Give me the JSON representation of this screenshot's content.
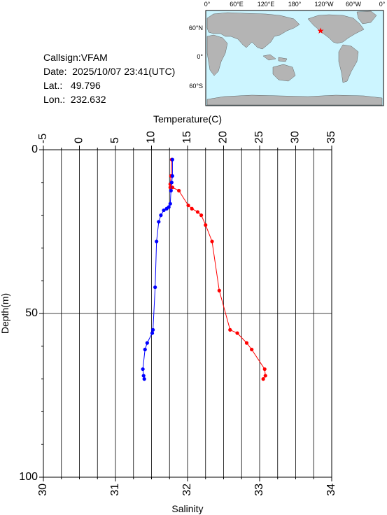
{
  "station": {
    "callsign_label": "Callsign:",
    "callsign": "VFAM",
    "date_label": "Date:",
    "date": "2025/10/07 23:41(UTC)",
    "lat_label": "Lat.:",
    "lat": "49.796",
    "lon_label": "Lon.:",
    "lon": "232.632"
  },
  "map": {
    "lon_labels": [
      "0°",
      "60°E",
      "120°E",
      "180°",
      "120°W",
      "60°W",
      "0°"
    ],
    "lat_labels": [
      "60°N",
      "0°",
      "60°S"
    ],
    "ocean_color": "#ccf5ff",
    "land_color": "#b4b4b4",
    "marker": "red-star"
  },
  "chart_data": {
    "type": "line",
    "top_axis_label": "Temperature(C)",
    "bottom_axis_label": "Salinity",
    "y_axis_label": "Depth(m)",
    "temperature_ticks": [
      "-5",
      "0",
      "5",
      "10",
      "15",
      "20",
      "25",
      "30",
      "35"
    ],
    "salinity_ticks": [
      "30",
      "31",
      "32",
      "33",
      "34"
    ],
    "depth_ticks": [
      "0",
      "50",
      "100"
    ],
    "xlim_temperature": [
      -5,
      35
    ],
    "xlim_salinity": [
      30,
      34
    ],
    "ylim_depth": [
      0,
      100
    ],
    "grid": true,
    "series": [
      {
        "quantity": "temperature",
        "color": "#ff0000",
        "points": [
          [
            12.8,
            3
          ],
          [
            12.7,
            8
          ],
          [
            12.6,
            10.5
          ],
          [
            12.6,
            11.5
          ],
          [
            12.9,
            11.5
          ],
          [
            13.8,
            12.5
          ],
          [
            15.1,
            17
          ],
          [
            15.6,
            18
          ],
          [
            16.4,
            19
          ],
          [
            16.9,
            20
          ],
          [
            17.5,
            23
          ],
          [
            18.4,
            28
          ],
          [
            19.4,
            43
          ],
          [
            20.9,
            55
          ],
          [
            21.9,
            56
          ],
          [
            23.2,
            59
          ],
          [
            23.9,
            61
          ],
          [
            25.7,
            67
          ],
          [
            25.8,
            69
          ],
          [
            25.5,
            70
          ]
        ]
      },
      {
        "quantity": "salinity",
        "color": "#0000ff",
        "points": [
          [
            31.79,
            3
          ],
          [
            31.79,
            8
          ],
          [
            31.78,
            10
          ],
          [
            31.77,
            12.5
          ],
          [
            31.76,
            16.5
          ],
          [
            31.74,
            17.5
          ],
          [
            31.71,
            18
          ],
          [
            31.67,
            18.5
          ],
          [
            31.63,
            20
          ],
          [
            31.6,
            22
          ],
          [
            31.57,
            28
          ],
          [
            31.55,
            42
          ],
          [
            31.52,
            55
          ],
          [
            31.51,
            56
          ],
          [
            31.44,
            59
          ],
          [
            31.41,
            61
          ],
          [
            31.38,
            67
          ],
          [
            31.39,
            69
          ],
          [
            31.4,
            70
          ]
        ]
      }
    ]
  }
}
